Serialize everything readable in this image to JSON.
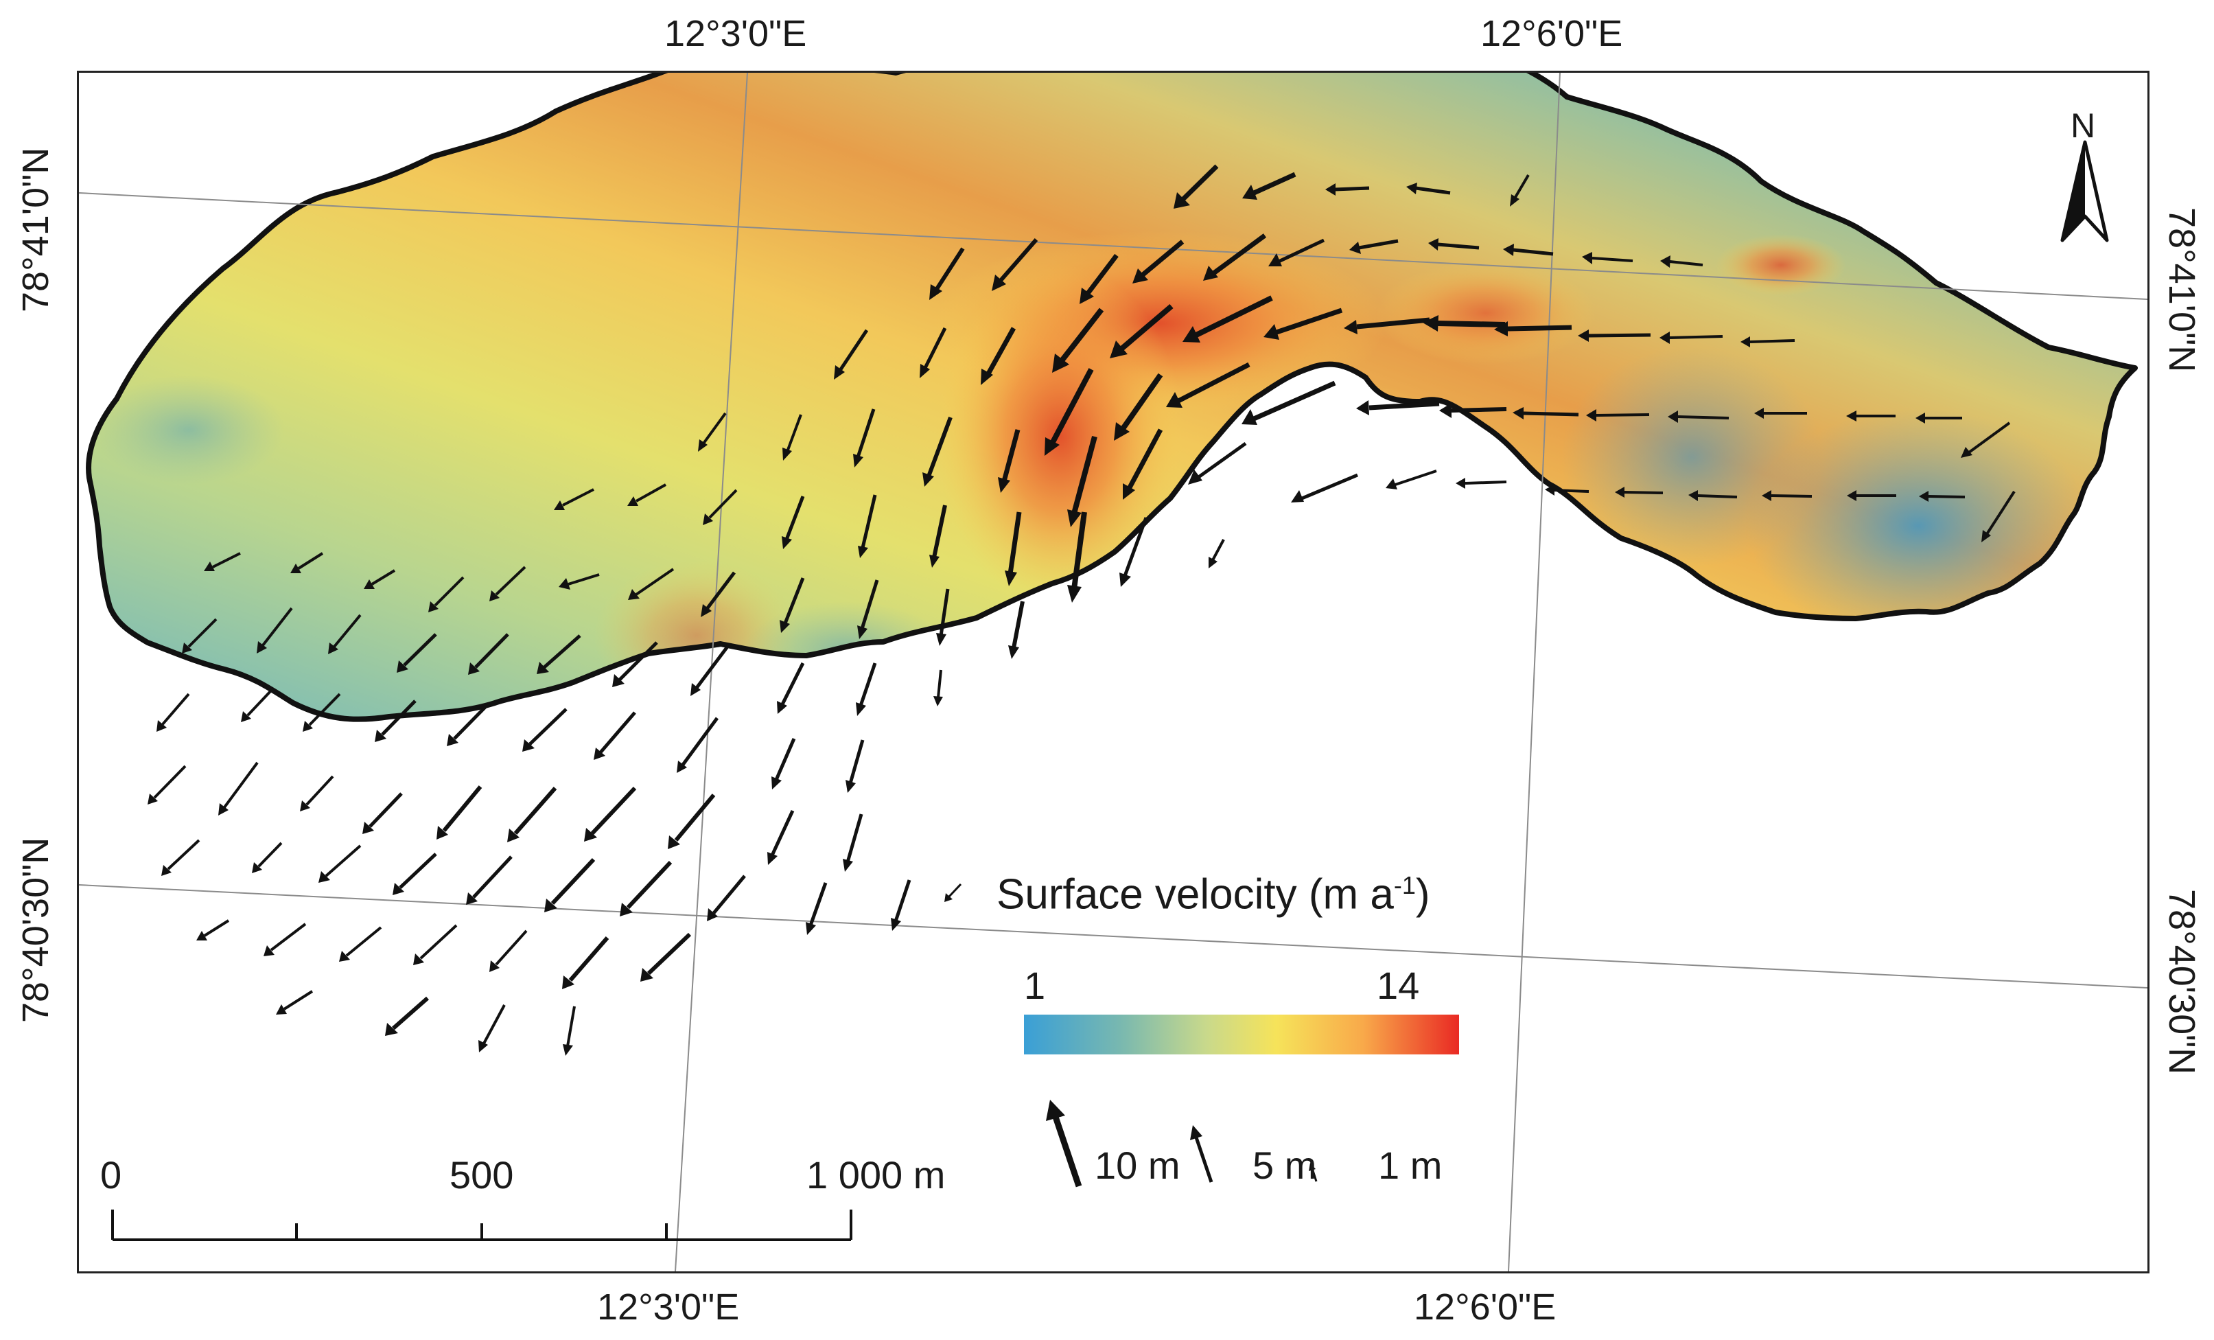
{
  "graticule": {
    "top_lon_1": "12°3'0\"E",
    "top_lon_2": "12°6'0\"E",
    "bottom_lon_1": "12°3'0\"E",
    "bottom_lon_2": "12°6'0\"E",
    "left_lat_1": "78°41'0\"N",
    "left_lat_2": "78°40'30\"N",
    "right_lat_1": "78°41'0\"N",
    "right_lat_2": "78°40'30\"N"
  },
  "north_arrow": {
    "letter": "N",
    "icon": "north-arrow-icon"
  },
  "legend": {
    "title": "Surface velocity (m a",
    "title_superscript": "-1",
    "title_close": ")",
    "min": "1",
    "max": "14",
    "colors": [
      "#3a9fd6",
      "#78b8b0",
      "#c9d98b",
      "#f6e35a",
      "#f8a94a",
      "#e92a24"
    ]
  },
  "vector_legend": {
    "large": "10 m",
    "medium": "5 m",
    "small": "1 m"
  },
  "scale_bar": {
    "zero": "0",
    "mid": "500",
    "end": "1 000 m"
  }
}
